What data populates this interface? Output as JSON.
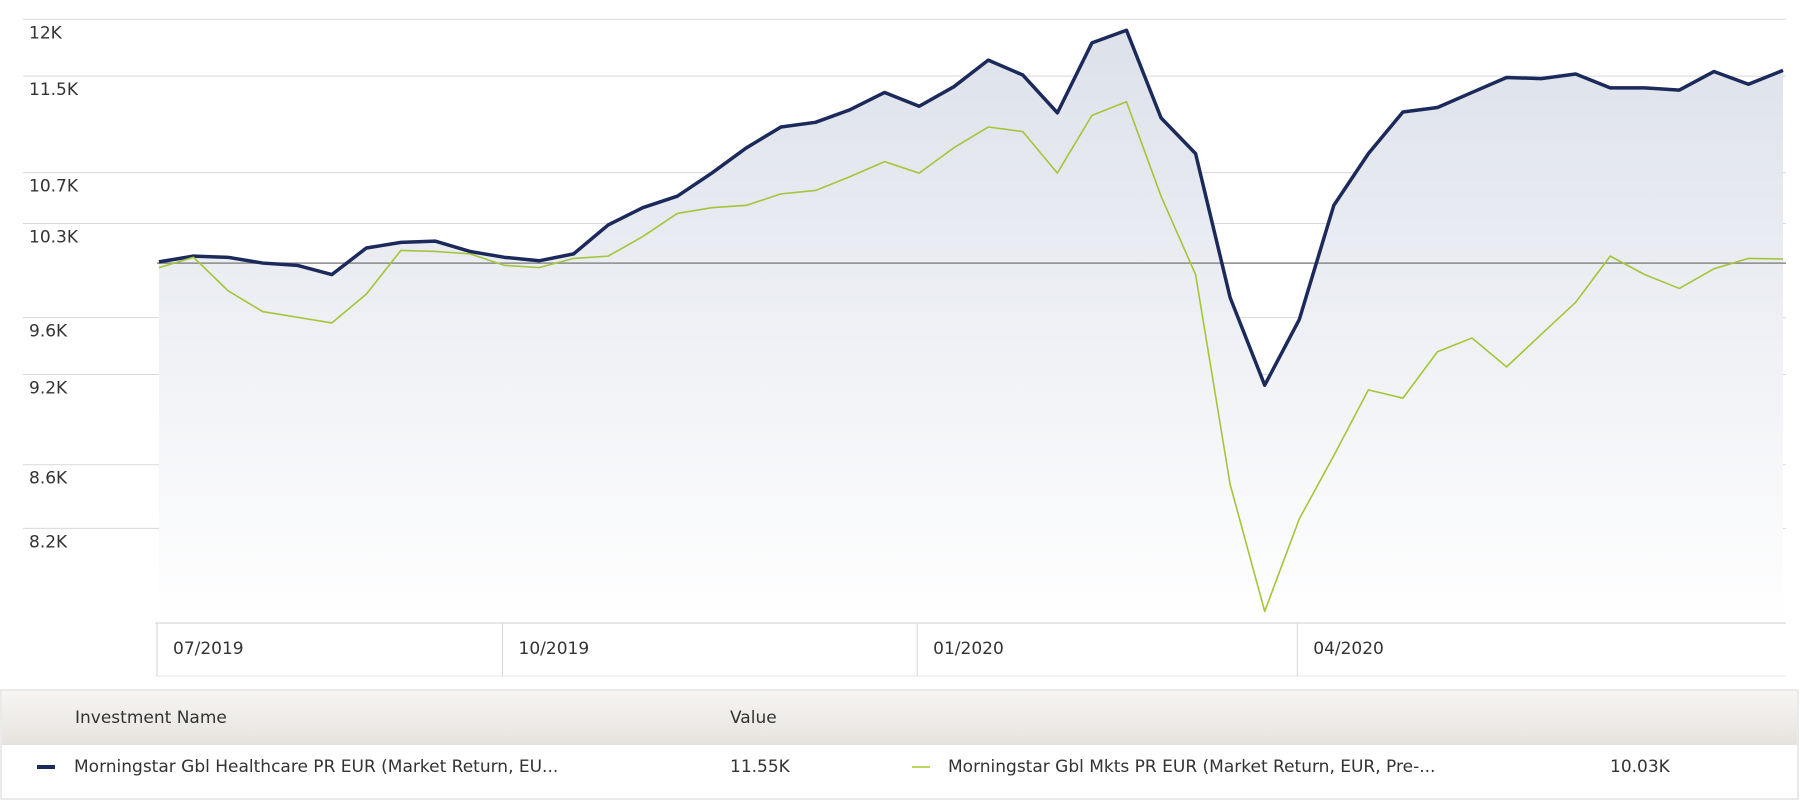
{
  "chart_data": {
    "type": "line",
    "log_scale": true,
    "grid": true,
    "baseline": 10000,
    "area_under": "series.0",
    "categories": [
      "07/2019",
      null,
      null,
      null,
      null,
      null,
      null,
      null,
      null,
      null,
      "10/2019",
      null,
      null,
      null,
      null,
      null,
      null,
      null,
      null,
      null,
      null,
      null,
      "01/2020",
      null,
      null,
      null,
      null,
      null,
      null,
      null,
      null,
      null,
      null,
      "04/2020",
      null,
      null,
      null,
      null,
      null,
      null,
      null,
      null,
      null,
      null,
      null,
      null,
      null,
      null
    ],
    "ylim": [
      7640,
      12070
    ],
    "yticks": [
      {
        "value": 12000,
        "label": "12K"
      },
      {
        "value": 11500,
        "label": "11.5K"
      },
      {
        "value": 10700,
        "label": "10.7K"
      },
      {
        "value": 10300,
        "label": "10.3K"
      },
      {
        "value": 9600,
        "label": "9.6K"
      },
      {
        "value": 9200,
        "label": "9.2K"
      },
      {
        "value": 8600,
        "label": "8.6K"
      },
      {
        "value": 8200,
        "label": "8.2K"
      }
    ],
    "legend_headers": [
      "Investment Name",
      "Value"
    ],
    "series": [
      {
        "name": "Morningstar Gbl Healthcare PR EUR (Market Return, EU...",
        "color": "#1b2a5a",
        "last_value_label": "11.55K",
        "values": [
          10009,
          10052,
          10043,
          10000,
          9983,
          9914,
          10113,
          10156,
          10165,
          10087,
          10043,
          10017,
          10069,
          10289,
          10423,
          10513,
          10696,
          10900,
          11071,
          11110,
          11215,
          11361,
          11244,
          11409,
          11639,
          11510,
          11189,
          11790,
          11902,
          11147,
          10853,
          9745,
          9127,
          9586,
          10441,
          10853,
          11196,
          11234,
          11361,
          11489,
          11479,
          11519,
          11400,
          11400,
          11381,
          11540,
          11431,
          11550
        ]
      },
      {
        "name": "Morningstar Gbl Mkts PR EUR (Market Return, EUR, Pre-...",
        "color": "#a3c639",
        "last_value_label": "10.03K",
        "values": [
          9966,
          10043,
          9795,
          9644,
          9603,
          9562,
          9770,
          10095,
          10087,
          10069,
          9983,
          9966,
          10035,
          10052,
          10200,
          10378,
          10423,
          10441,
          10531,
          10558,
          10668,
          10788,
          10696,
          10900,
          11071,
          11033,
          10696,
          11168,
          11282,
          10513,
          9914,
          8474,
          7707,
          8258,
          8659,
          9095,
          9039,
          9358,
          9455,
          9253,
          9480,
          9711,
          10052,
          9914,
          9812,
          9957,
          10035,
          10030
        ]
      }
    ]
  }
}
